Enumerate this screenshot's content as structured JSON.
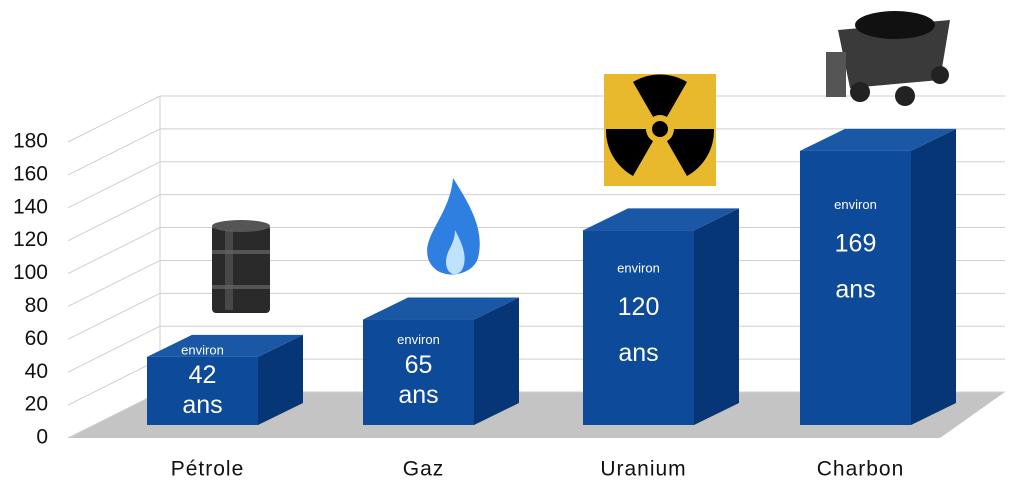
{
  "chart_data": {
    "type": "bar3d",
    "categories": [
      "Pétrole",
      "Gaz",
      "Uranium",
      "Charbon"
    ],
    "values": [
      42,
      65,
      120,
      169
    ],
    "value_labels": [
      [
        "environ",
        "42",
        "ans"
      ],
      [
        "environ",
        "65",
        "ans"
      ],
      [
        "environ",
        "120",
        "ans"
      ],
      [
        "environ",
        "169",
        "ans"
      ]
    ],
    "color": "#0d4a9a",
    "ylim": [
      0,
      180
    ],
    "yticks": [
      0,
      20,
      40,
      60,
      80,
      100,
      120,
      140,
      160,
      180
    ],
    "grid": true
  }
}
